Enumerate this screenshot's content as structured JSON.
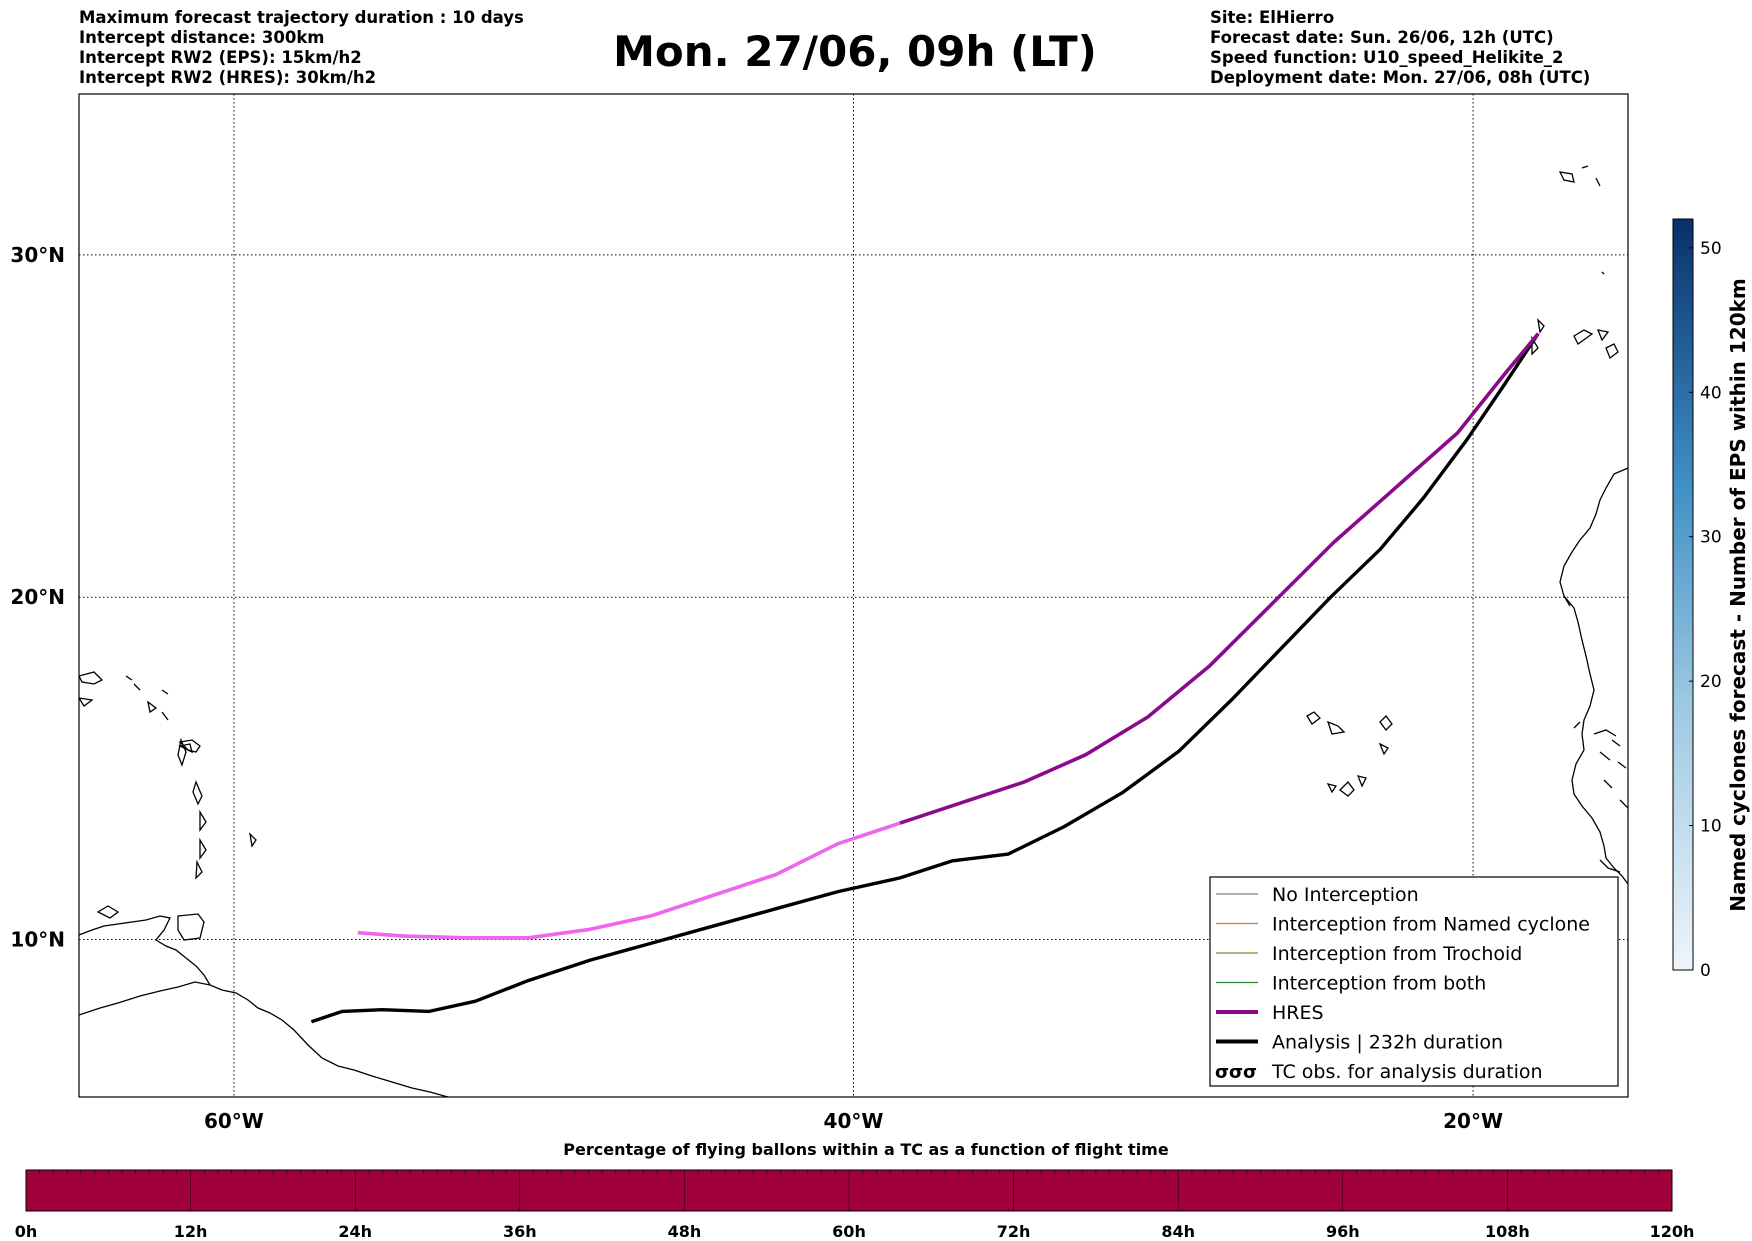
{
  "header": {
    "left": [
      "Maximum forecast trajectory duration : 10 days",
      "Intercept distance: 300km",
      "Intercept RW2 (EPS):  15km/h2",
      "Intercept RW2 (HRES): 30km/h2"
    ],
    "title": "Mon. 27/06, 09h (LT)",
    "right": [
      "Site: ElHierro",
      "Forecast date: Sun. 26/06, 12h (UTC)",
      "Speed function: U10_speed_Helikite_2",
      "Deployment date: Mon. 27/06, 08h (UTC)"
    ]
  },
  "map": {
    "lon_range": [
      -65,
      -15
    ],
    "lat_range": [
      5.4,
      34.7
    ],
    "lat_labels": [
      {
        "lat": 30,
        "label": "30°N"
      },
      {
        "lat": 20,
        "label": "20°N"
      },
      {
        "lat": 10,
        "label": "10°N"
      }
    ],
    "lon_labels": [
      {
        "lon": -60,
        "label": "60°W"
      },
      {
        "lon": -40,
        "label": "40°W"
      },
      {
        "lon": -20,
        "label": "20°W"
      }
    ],
    "start_point": {
      "lon": -17.9,
      "lat": 27.7
    },
    "hres_track": [
      [
        -17.9,
        27.7
      ],
      [
        -19,
        26.5
      ],
      [
        -20.5,
        24.8
      ],
      [
        -22.5,
        23.2
      ],
      [
        -24.5,
        21.6
      ],
      [
        -26.5,
        19.8
      ],
      [
        -28.5,
        18
      ],
      [
        -30.5,
        16.5
      ],
      [
        -32.5,
        15.4
      ],
      [
        -34.5,
        14.6
      ],
      [
        -36.5,
        14
      ],
      [
        -38.5,
        13.4
      ],
      [
        -40.5,
        12.8
      ],
      [
        -42.5,
        11.9
      ],
      [
        -44.5,
        11.3
      ],
      [
        -46.5,
        10.7
      ],
      [
        -48.5,
        10.3
      ],
      [
        -50.5,
        10.05
      ],
      [
        -52.5,
        10.05
      ],
      [
        -54.5,
        10.1
      ],
      [
        -56,
        10.2
      ]
    ],
    "hres_dark_until_lon": -38.5,
    "analysis_track": [
      [
        -17.9,
        27.7
      ],
      [
        -19,
        26.2
      ],
      [
        -20.2,
        24.6
      ],
      [
        -21.6,
        22.9
      ],
      [
        -23,
        21.4
      ],
      [
        -24.6,
        20
      ],
      [
        -26.2,
        18.5
      ],
      [
        -27.8,
        17
      ],
      [
        -29.5,
        15.5
      ],
      [
        -31.3,
        14.3
      ],
      [
        -33.2,
        13.3
      ],
      [
        -35,
        12.5
      ],
      [
        -36.8,
        12.3
      ],
      [
        -38.5,
        11.8
      ],
      [
        -40.5,
        11.4
      ],
      [
        -42.5,
        10.9
      ],
      [
        -44.5,
        10.4
      ],
      [
        -46.5,
        9.9
      ],
      [
        -48.5,
        9.4
      ],
      [
        -50.5,
        8.8
      ],
      [
        -52.2,
        8.2
      ],
      [
        -53.7,
        7.9
      ],
      [
        -55.2,
        7.95
      ],
      [
        -56.5,
        7.9
      ],
      [
        -57.5,
        7.6
      ]
    ],
    "colorbar": {
      "label": "Named cyclones forecast - Number of EPS within 120km",
      "min": 0,
      "max": 52,
      "ticks": [
        "0",
        "10",
        "20",
        "30",
        "40",
        "50"
      ]
    },
    "legend": [
      {
        "label": "No Interception",
        "color": "#808080",
        "kind": "line-thin"
      },
      {
        "label": "Interception from Named cyclone",
        "color": "#e8702f",
        "kind": "line-thin"
      },
      {
        "label": "Interception from Trochoid",
        "color": "#8b8b2a",
        "kind": "line-thin"
      },
      {
        "label": "Interception from both",
        "color": "#2e8b2e",
        "kind": "line-thin"
      },
      {
        "label": "HRES",
        "color": "#8b0a8b",
        "kind": "line-thick"
      },
      {
        "label": "Analysis | 232h duration",
        "color": "#000000",
        "kind": "line-thick"
      },
      {
        "label": "TC obs. for analysis duration",
        "color": "#000000",
        "kind": "tc-symbol",
        "symbol": "σσσ"
      }
    ]
  },
  "bottom_bar": {
    "title": "Percentage of flying ballons within a TC as a function of flight time",
    "color": "#a0003c",
    "ticks": [
      "0h",
      "12h",
      "24h",
      "36h",
      "48h",
      "60h",
      "72h",
      "84h",
      "96h",
      "108h",
      "120h"
    ]
  }
}
